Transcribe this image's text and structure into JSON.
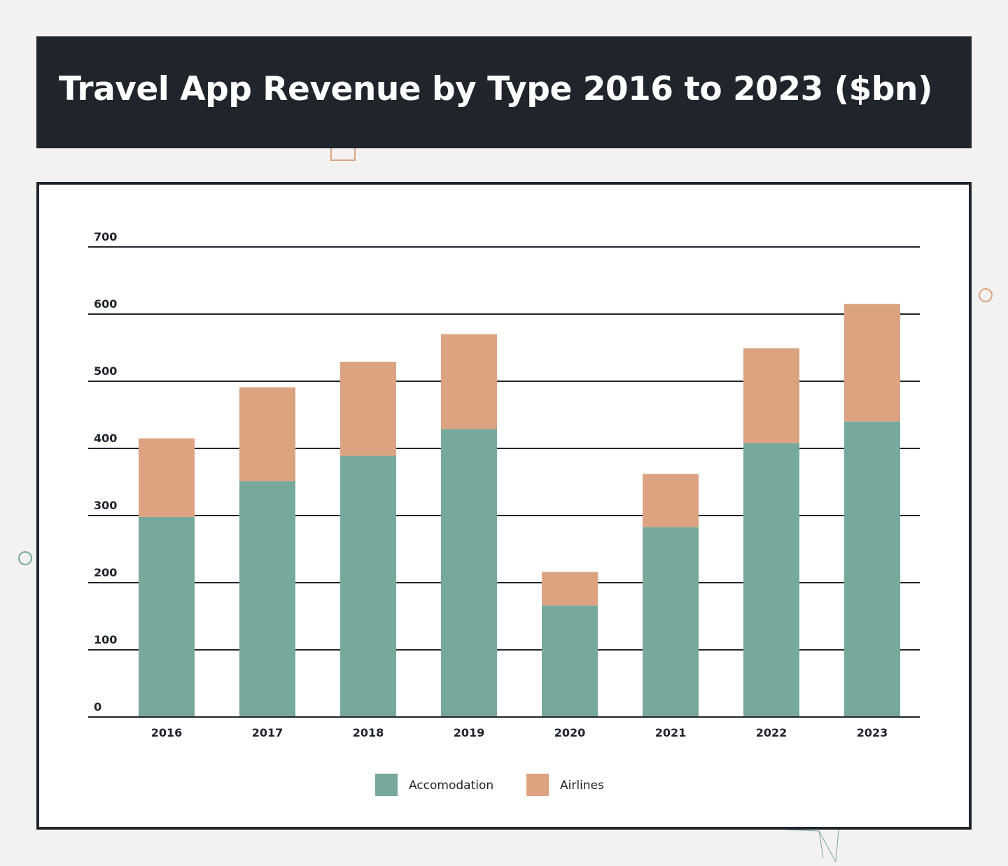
{
  "header": {
    "title": "Travel App Revenue by Type 2016 to 2023 ($bn)"
  },
  "colors": {
    "background": "#f3f2f0",
    "header": "#20242d",
    "accomodation": "#76a99c",
    "airlines": "#dca380"
  },
  "chart_data": {
    "type": "bar",
    "stacked": true,
    "title": "Travel App Revenue by Type 2016 to 2023 ($bn)",
    "categories": [
      "2016",
      "2017",
      "2018",
      "2019",
      "2020",
      "2021",
      "2022",
      "2023"
    ],
    "series": [
      {
        "name": "Accomodation",
        "color": "#76a99c",
        "values": [
          298,
          351,
          389,
          429,
          166,
          283,
          408,
          440
        ]
      },
      {
        "name": "Airlines",
        "color": "#dca380",
        "values": [
          117,
          140,
          140,
          141,
          50,
          79,
          141,
          175
        ]
      }
    ],
    "ylim": [
      0,
      700
    ],
    "yticks": [
      0,
      100,
      200,
      300,
      400,
      500,
      600,
      700
    ],
    "grid": true,
    "legend": "bottom-center",
    "xlabel": "",
    "ylabel": ""
  }
}
